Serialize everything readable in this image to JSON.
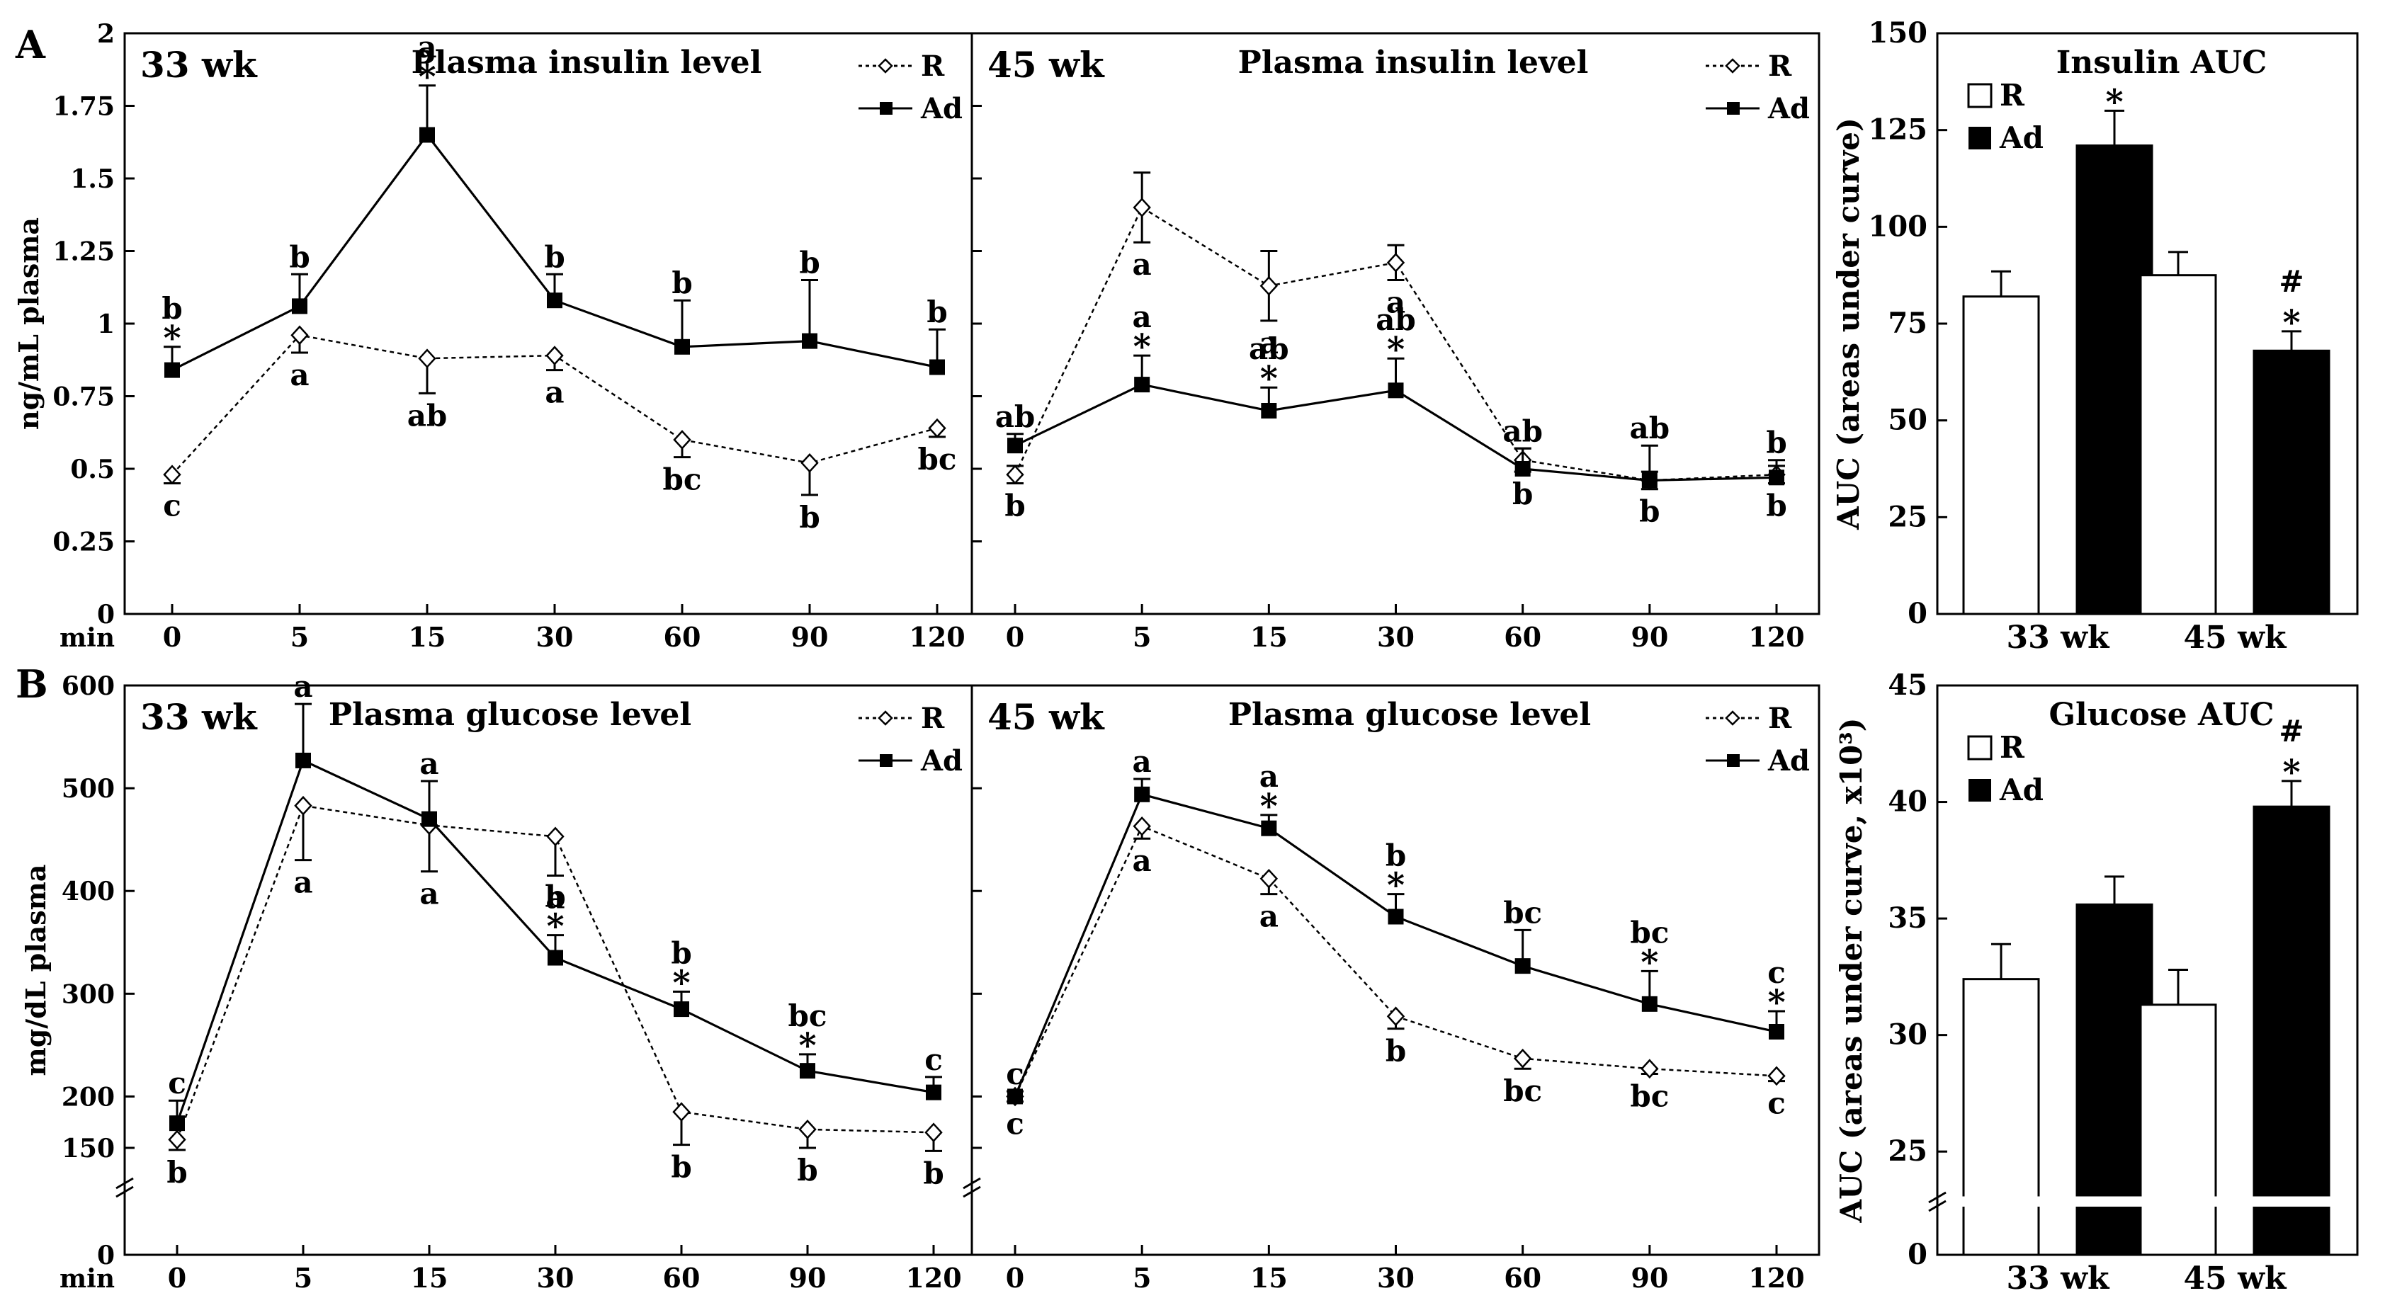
{
  "panel_labels": [
    "A",
    "B"
  ],
  "x_min_label": "min",
  "x_categories": [
    "0",
    "5",
    "15",
    "30",
    "60",
    "90",
    "120"
  ],
  "legend": {
    "r": "R",
    "ad": "Ad"
  },
  "colors": {
    "ink": "#000000",
    "open_fill": "#ffffff"
  },
  "chart_data": [
    {
      "id": "insulin_33",
      "type": "line",
      "panel": "A",
      "week_label": "33 wk",
      "title": "Plasma insulin level",
      "ylabel": "ng/mL plasma",
      "xlabel": "min",
      "ylim": [
        0,
        2
      ],
      "yticks": [
        "0",
        "0.25",
        "0.5",
        "0.75",
        "1",
        "1.25",
        "1.5",
        "1.75",
        "2"
      ],
      "categories": [
        "0",
        "5",
        "15",
        "30",
        "60",
        "90",
        "120"
      ],
      "series": [
        {
          "name": "R",
          "values": [
            0.48,
            0.96,
            0.88,
            0.89,
            0.6,
            0.52,
            0.64
          ],
          "err": [
            0.03,
            0.06,
            0.12,
            0.05,
            0.06,
            0.11,
            0.03
          ],
          "err_dir": "down",
          "letters": [
            "c",
            "a",
            "ab",
            "a",
            "bc",
            "b",
            "bc"
          ],
          "stars": [
            false,
            false,
            false,
            false,
            false,
            false,
            false
          ]
        },
        {
          "name": "Ad",
          "values": [
            0.84,
            1.06,
            1.65,
            1.08,
            0.92,
            0.94,
            0.85
          ],
          "err": [
            0.08,
            0.11,
            0.17,
            0.09,
            0.16,
            0.21,
            0.13
          ],
          "err_dir": "up",
          "letters": [
            "b",
            "b",
            "a",
            "b",
            "b",
            "b",
            "b"
          ],
          "stars": [
            true,
            false,
            true,
            false,
            false,
            false,
            false
          ]
        }
      ]
    },
    {
      "id": "insulin_45",
      "type": "line",
      "panel": "A",
      "week_label": "45 wk",
      "title": "Plasma insulin level",
      "ylim": [
        0,
        2
      ],
      "categories": [
        "0",
        "5",
        "15",
        "30",
        "60",
        "90",
        "120"
      ],
      "series": [
        {
          "name": "R",
          "values": [
            0.48,
            1.4,
            1.13,
            1.21,
            0.53,
            0.46,
            0.48
          ],
          "err": [
            0.03,
            0.12,
            0.12,
            0.06,
            0.04,
            0.03,
            0.03
          ],
          "err_dir": "both",
          "letters": [
            "b",
            "a",
            "a",
            "a",
            "b",
            "b",
            "b"
          ],
          "stars": [
            false,
            false,
            false,
            false,
            false,
            false,
            false
          ]
        },
        {
          "name": "Ad",
          "values": [
            0.58,
            0.79,
            0.7,
            0.77,
            0.5,
            0.46,
            0.47
          ],
          "err": [
            0.04,
            0.1,
            0.08,
            0.11,
            0.07,
            0.12,
            0.06
          ],
          "err_dir": "up",
          "letters": [
            "ab",
            "a",
            "ab",
            "ab",
            "ab",
            "ab",
            "b"
          ],
          "stars": [
            false,
            true,
            true,
            true,
            false,
            false,
            false
          ]
        }
      ]
    },
    {
      "id": "insulin_auc",
      "type": "bar",
      "panel": "A",
      "title": "Insulin AUC",
      "ylabel": "AUC (areas under curve)",
      "categories": [
        "33 wk",
        "45 wk"
      ],
      "ylim": [
        0,
        150
      ],
      "yticks": [
        "0",
        "25",
        "50",
        "75",
        "100",
        "125",
        "150"
      ],
      "series": [
        {
          "name": "R",
          "values": [
            82,
            87.5
          ],
          "err": [
            6.5,
            6
          ]
        },
        {
          "name": "Ad",
          "values": [
            121,
            68
          ],
          "err": [
            9,
            5
          ]
        }
      ],
      "annotations": [
        {
          "category": "33 wk",
          "series": "Ad",
          "text": "*"
        },
        {
          "category": "45 wk",
          "series": "Ad",
          "text": "*"
        },
        {
          "category": "45 wk",
          "series": "Ad",
          "text": "#"
        }
      ]
    },
    {
      "id": "glucose_33",
      "type": "line",
      "panel": "B",
      "week_label": "33 wk",
      "title": "Plasma glucose level",
      "ylabel": "mg/dL plasma",
      "xlabel": "min",
      "ylim": [
        0,
        600
      ],
      "axis_break": [
        0,
        130
      ],
      "yticks": [
        "0",
        "150",
        "200",
        "300",
        "400",
        "500",
        "600"
      ],
      "categories": [
        "0",
        "5",
        "15",
        "30",
        "60",
        "90",
        "120"
      ],
      "series": [
        {
          "name": "R",
          "values": [
            158,
            483,
            464,
            453,
            185,
            168,
            165
          ],
          "err": [
            10,
            53,
            45,
            38,
            32,
            18,
            18
          ],
          "err_dir": "down",
          "letters": [
            "b",
            "a",
            "a",
            "a",
            "b",
            "b",
            "b"
          ],
          "stars": [
            false,
            false,
            false,
            false,
            false,
            false,
            false
          ]
        },
        {
          "name": "Ad",
          "values": [
            174,
            527,
            470,
            335,
            285,
            225,
            204
          ],
          "err": [
            22,
            55,
            37,
            22,
            17,
            16,
            15
          ],
          "err_dir": "up",
          "letters": [
            "c",
            "a",
            "a",
            "b",
            "b",
            "bc",
            "c"
          ],
          "stars": [
            false,
            false,
            false,
            true,
            true,
            true,
            false
          ]
        }
      ]
    },
    {
      "id": "glucose_45",
      "type": "line",
      "panel": "B",
      "week_label": "45 wk",
      "title": "Plasma glucose level",
      "ylim": [
        0,
        600
      ],
      "axis_break": [
        0,
        130
      ],
      "categories": [
        "0",
        "5",
        "15",
        "30",
        "60",
        "90",
        "120"
      ],
      "series": [
        {
          "name": "R",
          "values": [
            200,
            463,
            412,
            278,
            237,
            227,
            220
          ],
          "err": [
            5,
            12,
            15,
            12,
            10,
            5,
            5
          ],
          "err_dir": "down",
          "letters": [
            "c",
            "a",
            "a",
            "b",
            "bc",
            "bc",
            "c"
          ],
          "stars": [
            false,
            false,
            false,
            false,
            false,
            false,
            false
          ]
        },
        {
          "name": "Ad",
          "values": [
            200,
            494,
            461,
            375,
            327,
            290,
            263
          ],
          "err": [
            5,
            15,
            13,
            22,
            35,
            32,
            20
          ],
          "err_dir": "up",
          "letters": [
            "c",
            "a",
            "a",
            "b",
            "bc",
            "bc",
            "c"
          ],
          "stars": [
            false,
            false,
            true,
            true,
            false,
            true,
            true
          ]
        }
      ]
    },
    {
      "id": "glucose_auc",
      "type": "bar",
      "panel": "B",
      "title": "Glucose AUC",
      "ylabel": "AUC (areas under curve, x10³)",
      "categories": [
        "33 wk",
        "45 wk"
      ],
      "ylim": [
        0,
        45
      ],
      "axis_break": [
        0,
        23
      ],
      "yticks": [
        "0",
        "25",
        "30",
        "35",
        "40",
        "45"
      ],
      "series": [
        {
          "name": "R",
          "values": [
            32.4,
            31.3
          ],
          "err": [
            1.5,
            1.5
          ]
        },
        {
          "name": "Ad",
          "values": [
            35.6,
            39.8
          ],
          "err": [
            1.2,
            1.1
          ]
        }
      ],
      "annotations": [
        {
          "category": "45 wk",
          "series": "Ad",
          "text": "*"
        },
        {
          "category": "45 wk",
          "series": "Ad",
          "text": "#"
        }
      ]
    }
  ]
}
